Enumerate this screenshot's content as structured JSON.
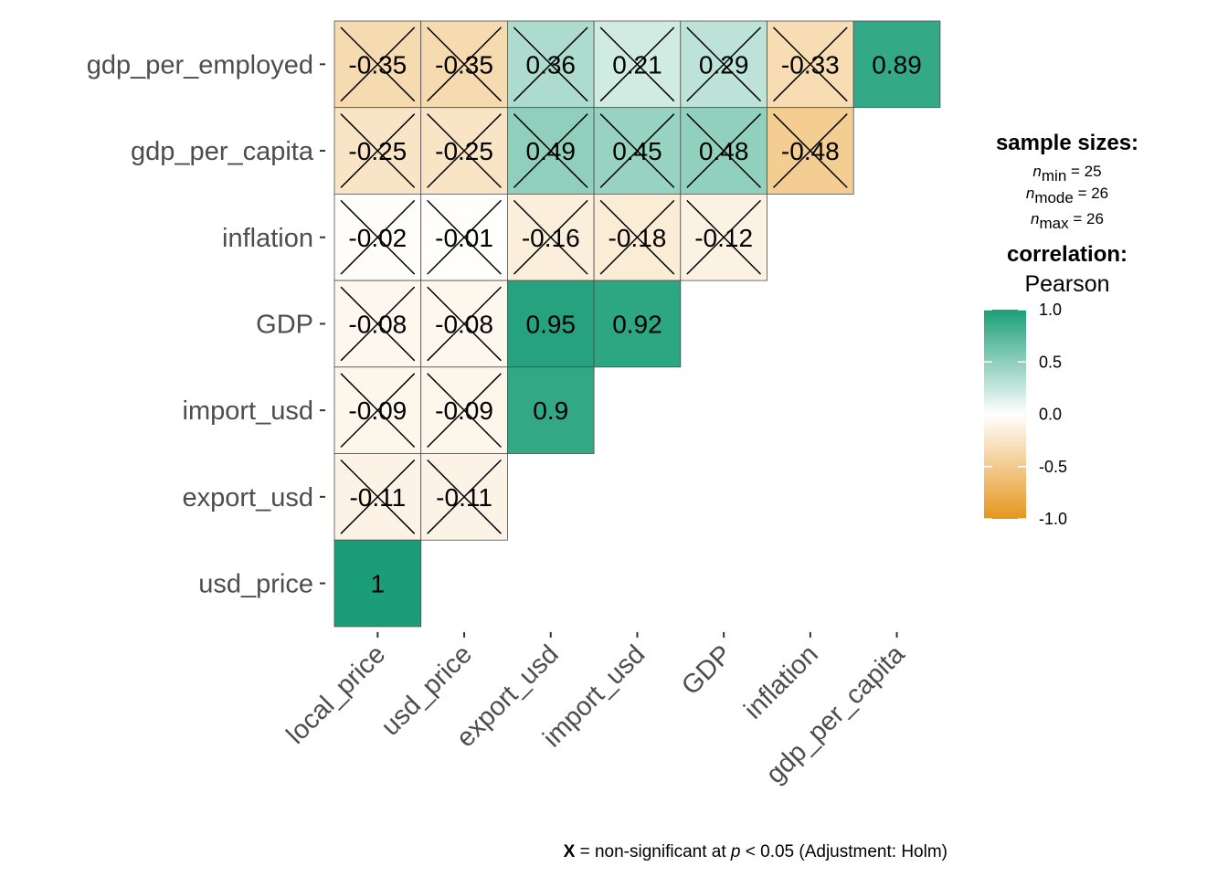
{
  "chart_data": {
    "type": "heatmap",
    "method_title": "correlation:",
    "method_name": "Pearson",
    "x_labels": [
      "local_price",
      "usd_price",
      "export_usd",
      "import_usd",
      "GDP",
      "inflation",
      "gdp_per_capita"
    ],
    "y_labels": [
      "gdp_per_employed",
      "gdp_per_capita",
      "inflation",
      "GDP",
      "import_usd",
      "export_usd",
      "usd_price"
    ],
    "cells": [
      {
        "row": 0,
        "col": 0,
        "value": -0.35,
        "label": "-0.35",
        "nonsig": true
      },
      {
        "row": 0,
        "col": 1,
        "value": -0.35,
        "label": "-0.35",
        "nonsig": true
      },
      {
        "row": 0,
        "col": 2,
        "value": 0.36,
        "label": "0.36",
        "nonsig": true
      },
      {
        "row": 0,
        "col": 3,
        "value": 0.21,
        "label": "0.21",
        "nonsig": true
      },
      {
        "row": 0,
        "col": 4,
        "value": 0.29,
        "label": "0.29",
        "nonsig": true
      },
      {
        "row": 0,
        "col": 5,
        "value": -0.33,
        "label": "-0.33",
        "nonsig": true
      },
      {
        "row": 0,
        "col": 6,
        "value": 0.89,
        "label": "0.89",
        "nonsig": false
      },
      {
        "row": 1,
        "col": 0,
        "value": -0.25,
        "label": "-0.25",
        "nonsig": true
      },
      {
        "row": 1,
        "col": 1,
        "value": -0.25,
        "label": "-0.25",
        "nonsig": true
      },
      {
        "row": 1,
        "col": 2,
        "value": 0.49,
        "label": "0.49",
        "nonsig": true
      },
      {
        "row": 1,
        "col": 3,
        "value": 0.45,
        "label": "0.45",
        "nonsig": true
      },
      {
        "row": 1,
        "col": 4,
        "value": 0.48,
        "label": "0.48",
        "nonsig": true
      },
      {
        "row": 1,
        "col": 5,
        "value": -0.48,
        "label": "-0.48",
        "nonsig": true
      },
      {
        "row": 2,
        "col": 0,
        "value": -0.02,
        "label": "-0.02",
        "nonsig": true
      },
      {
        "row": 2,
        "col": 1,
        "value": -0.01,
        "label": "-0.01",
        "nonsig": true
      },
      {
        "row": 2,
        "col": 2,
        "value": -0.16,
        "label": "-0.16",
        "nonsig": true
      },
      {
        "row": 2,
        "col": 3,
        "value": -0.18,
        "label": "-0.18",
        "nonsig": true
      },
      {
        "row": 2,
        "col": 4,
        "value": -0.12,
        "label": "-0.12",
        "nonsig": true
      },
      {
        "row": 3,
        "col": 0,
        "value": -0.08,
        "label": "-0.08",
        "nonsig": true
      },
      {
        "row": 3,
        "col": 1,
        "value": -0.08,
        "label": "-0.08",
        "nonsig": true
      },
      {
        "row": 3,
        "col": 2,
        "value": 0.95,
        "label": "0.95",
        "nonsig": false
      },
      {
        "row": 3,
        "col": 3,
        "value": 0.92,
        "label": "0.92",
        "nonsig": false
      },
      {
        "row": 4,
        "col": 0,
        "value": -0.09,
        "label": "-0.09",
        "nonsig": true
      },
      {
        "row": 4,
        "col": 1,
        "value": -0.09,
        "label": "-0.09",
        "nonsig": true
      },
      {
        "row": 4,
        "col": 2,
        "value": 0.9,
        "label": "0.9",
        "nonsig": false
      },
      {
        "row": 5,
        "col": 0,
        "value": -0.11,
        "label": "-0.11",
        "nonsig": true
      },
      {
        "row": 5,
        "col": 1,
        "value": -0.11,
        "label": "-0.11",
        "nonsig": true
      },
      {
        "row": 6,
        "col": 0,
        "value": 1,
        "label": "1",
        "nonsig": false
      }
    ],
    "colorbar": {
      "ticks": [
        "1.0",
        "0.5",
        "0.0",
        "-0.5",
        "-1.0"
      ],
      "range": [
        -1,
        1
      ],
      "high_color": "#1B9E77",
      "mid_color": "#FFFFFF",
      "low_color": "#E6961C"
    },
    "sample_sizes": {
      "title": "sample sizes:",
      "lines": [
        {
          "sub": "min",
          "value": "= 25"
        },
        {
          "sub": "mode",
          "value": "= 26"
        },
        {
          "sub": "max",
          "value": "= 26"
        }
      ]
    },
    "caption": {
      "symbol": "X",
      "text": " = non-significant at ",
      "p": "p",
      "rest": " < 0.05 (Adjustment: Holm)"
    }
  }
}
